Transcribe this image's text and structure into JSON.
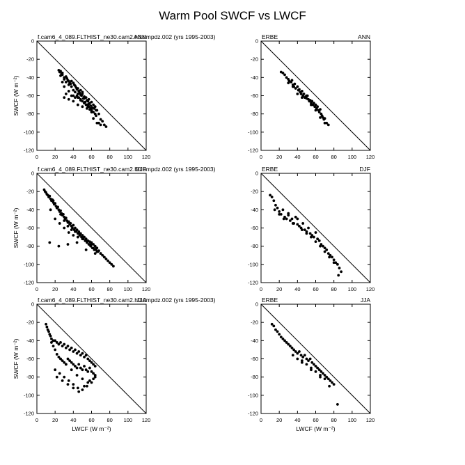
{
  "title": "Warm Pool SWCF vs LWCF",
  "chart_data": [
    {
      "id": "p1",
      "type": "scatter",
      "left_label": "f.cam6_4_089.FLTHIST_ne30.cam2.h0.dmpdz.002 (yrs 1995-2003)",
      "right_label": "ANN",
      "xlabel": "",
      "ylabel": "SWCF (W m⁻²)",
      "xlim": [
        0,
        120
      ],
      "ylim": [
        -120,
        0
      ],
      "xticks": [
        "0",
        "20",
        "40",
        "60",
        "80",
        "100",
        "120"
      ],
      "yticks": [
        "0",
        "-20",
        "-40",
        "-60",
        "-80",
        "-100",
        "-120"
      ],
      "reference_line": "y = -x",
      "x": [
        24,
        25,
        26,
        27,
        28,
        26,
        28,
        30,
        32,
        30,
        33,
        35,
        32,
        34,
        36,
        38,
        35,
        37,
        40,
        42,
        38,
        41,
        43,
        45,
        40,
        44,
        46,
        48,
        42,
        45,
        47,
        50,
        44,
        48,
        50,
        52,
        46,
        49,
        51,
        54,
        48,
        52,
        55,
        57,
        50,
        53,
        56,
        58,
        52,
        55,
        57,
        60,
        54,
        57,
        59,
        62,
        56,
        59,
        61,
        64,
        58,
        60,
        63,
        66,
        60,
        62,
        65,
        68,
        45,
        50,
        55,
        60,
        65,
        70,
        68,
        72,
        74,
        76,
        28,
        30,
        35,
        40,
        45,
        30,
        35,
        40,
        32,
        38,
        42,
        48,
        52,
        56,
        60,
        64,
        62,
        66,
        70
      ],
      "y": [
        -32,
        -34,
        -33,
        -36,
        -35,
        -38,
        -37,
        -40,
        -39,
        -42,
        -41,
        -44,
        -45,
        -43,
        -46,
        -44,
        -48,
        -47,
        -46,
        -49,
        -50,
        -48,
        -51,
        -52,
        -54,
        -53,
        -55,
        -54,
        -56,
        -58,
        -57,
        -56,
        -60,
        -59,
        -58,
        -61,
        -62,
        -60,
        -63,
        -62,
        -64,
        -63,
        -65,
        -64,
        -66,
        -67,
        -66,
        -68,
        -68,
        -70,
        -69,
        -67,
        -70,
        -72,
        -71,
        -70,
        -72,
        -74,
        -73,
        -72,
        -75,
        -76,
        -74,
        -76,
        -77,
        -78,
        -76,
        -80,
        -70,
        -72,
        -74,
        -78,
        -82,
        -86,
        -90,
        -88,
        -92,
        -94,
        -45,
        -50,
        -55,
        -60,
        -62,
        -62,
        -64,
        -66,
        -58,
        -60,
        -62,
        -65,
        -68,
        -70,
        -75,
        -80,
        -85,
        -90,
        -92
      ]
    },
    {
      "id": "p2",
      "type": "scatter",
      "left_label": "ERBE",
      "right_label": "ANN",
      "xlabel": "",
      "ylabel": "",
      "xlim": [
        0,
        120
      ],
      "ylim": [
        -120,
        0
      ],
      "xticks": [
        "0",
        "20",
        "40",
        "60",
        "80",
        "100",
        "120"
      ],
      "yticks": [
        "0",
        "-20",
        "-40",
        "-60",
        "-80",
        "-100",
        "-120"
      ],
      "reference_line": "y = -x",
      "x": [
        22,
        24,
        26,
        28,
        30,
        31,
        33,
        34,
        35,
        36,
        37,
        38,
        40,
        41,
        42,
        43,
        44,
        45,
        46,
        47,
        48,
        49,
        50,
        51,
        52,
        53,
        54,
        55,
        56,
        57,
        58,
        59,
        60,
        61,
        62,
        63,
        64,
        65,
        66,
        67,
        68,
        69,
        70,
        72,
        74,
        30,
        35,
        40,
        45,
        50,
        55,
        60,
        65,
        70
      ],
      "y": [
        -34,
        -35,
        -37,
        -40,
        -42,
        -44,
        -45,
        -43,
        -48,
        -50,
        -47,
        -52,
        -50,
        -54,
        -53,
        -56,
        -58,
        -55,
        -60,
        -58,
        -62,
        -61,
        -63,
        -60,
        -64,
        -66,
        -65,
        -68,
        -66,
        -70,
        -68,
        -72,
        -70,
        -74,
        -72,
        -76,
        -78,
        -75,
        -80,
        -82,
        -84,
        -86,
        -85,
        -90,
        -92,
        -46,
        -50,
        -58,
        -62,
        -60,
        -70,
        -76,
        -84,
        -90
      ]
    },
    {
      "id": "p3",
      "type": "scatter",
      "left_label": "f.cam6_4_089.FLTHIST_ne30.cam2.h0.dmpdz.002 (yrs 1995-2003)",
      "right_label": "DJF",
      "xlabel": "",
      "ylabel": "SWCF (W m⁻²)",
      "xlim": [
        0,
        120
      ],
      "ylim": [
        -120,
        0
      ],
      "xticks": [
        "0",
        "20",
        "40",
        "60",
        "80",
        "100",
        "120"
      ],
      "yticks": [
        "0",
        "-20",
        "-40",
        "-60",
        "-80",
        "-100",
        "-120"
      ],
      "reference_line": "y = -x",
      "x": [
        8,
        9,
        10,
        11,
        12,
        13,
        14,
        15,
        16,
        17,
        18,
        19,
        20,
        21,
        22,
        23,
        24,
        25,
        26,
        27,
        28,
        29,
        30,
        31,
        32,
        33,
        34,
        35,
        36,
        37,
        38,
        39,
        40,
        41,
        42,
        43,
        44,
        45,
        46,
        47,
        48,
        49,
        50,
        51,
        52,
        53,
        54,
        55,
        56,
        57,
        58,
        59,
        60,
        61,
        62,
        63,
        64,
        65,
        66,
        67,
        68,
        70,
        72,
        74,
        76,
        78,
        80,
        82,
        84,
        15,
        20,
        25,
        30,
        35,
        40,
        45,
        50,
        55,
        60,
        65,
        70,
        18,
        22,
        26,
        30,
        34,
        38,
        42,
        46,
        50,
        54,
        58,
        62,
        66,
        14,
        24,
        34,
        44,
        54,
        64,
        74
      ],
      "y": [
        -18,
        -20,
        -21,
        -23,
        -24,
        -26,
        -25,
        -28,
        -30,
        -29,
        -32,
        -34,
        -33,
        -36,
        -38,
        -37,
        -40,
        -42,
        -41,
        -44,
        -46,
        -45,
        -48,
        -50,
        -49,
        -52,
        -54,
        -53,
        -56,
        -55,
        -58,
        -60,
        -57,
        -62,
        -60,
        -64,
        -62,
        -66,
        -64,
        -68,
        -66,
        -70,
        -68,
        -72,
        -70,
        -74,
        -72,
        -76,
        -74,
        -78,
        -75,
        -80,
        -76,
        -82,
        -78,
        -84,
        -80,
        -84,
        -82,
        -86,
        -85,
        -88,
        -90,
        -92,
        -94,
        -96,
        -98,
        -100,
        -102,
        -40,
        -50,
        -55,
        -60,
        -65,
        -68,
        -70,
        -72,
        -75,
        -78,
        -82,
        -88,
        -30,
        -38,
        -45,
        -52,
        -58,
        -62,
        -64,
        -66,
        -70,
        -74,
        -78,
        -82,
        -86,
        -76,
        -80,
        -78,
        -76,
        -84,
        -88,
        -92
      ]
    },
    {
      "id": "p4",
      "type": "scatter",
      "left_label": "ERBE",
      "right_label": "DJF",
      "xlabel": "",
      "ylabel": "",
      "xlim": [
        0,
        120
      ],
      "ylim": [
        -120,
        0
      ],
      "xticks": [
        "0",
        "20",
        "40",
        "60",
        "80",
        "100",
        "120"
      ],
      "yticks": [
        "0",
        "-20",
        "-40",
        "-60",
        "-80",
        "-100",
        "-120"
      ],
      "reference_line": "y = -x",
      "x": [
        10,
        12,
        14,
        16,
        18,
        20,
        22,
        24,
        26,
        28,
        30,
        32,
        34,
        36,
        38,
        40,
        42,
        44,
        46,
        48,
        50,
        52,
        54,
        56,
        58,
        60,
        62,
        64,
        66,
        68,
        70,
        72,
        74,
        76,
        78,
        80,
        82,
        84,
        86,
        88,
        15,
        20,
        25,
        30,
        35,
        40,
        45,
        50,
        55,
        60,
        65,
        70,
        75,
        80,
        85
      ],
      "y": [
        -24,
        -26,
        -30,
        -35,
        -38,
        -42,
        -45,
        -40,
        -48,
        -50,
        -46,
        -52,
        -50,
        -55,
        -48,
        -56,
        -58,
        -60,
        -55,
        -62,
        -64,
        -60,
        -66,
        -68,
        -70,
        -65,
        -72,
        -74,
        -78,
        -80,
        -82,
        -84,
        -88,
        -90,
        -92,
        -95,
        -98,
        -100,
        -104,
        -108,
        -40,
        -45,
        -50,
        -44,
        -55,
        -50,
        -62,
        -66,
        -70,
        -75,
        -80,
        -86,
        -92,
        -98,
        -112
      ]
    },
    {
      "id": "p5",
      "type": "scatter",
      "left_label": "f.cam6_4_089.FLTHIST_ne30.cam2.h0.dmpdz.002 (yrs 1995-2003)",
      "right_label": "JJA",
      "xlabel": "LWCF (W m⁻²)",
      "ylabel": "SWCF (W m⁻²)",
      "xlim": [
        0,
        120
      ],
      "ylim": [
        -120,
        0
      ],
      "xticks": [
        "0",
        "20",
        "40",
        "60",
        "80",
        "100",
        "120"
      ],
      "yticks": [
        "0",
        "-20",
        "-40",
        "-60",
        "-80",
        "-100",
        "-120"
      ],
      "reference_line": "y = -x",
      "x": [
        10,
        11,
        12,
        13,
        14,
        15,
        16,
        18,
        20,
        22,
        24,
        26,
        28,
        30,
        32,
        34,
        36,
        38,
        40,
        42,
        44,
        46,
        48,
        50,
        52,
        54,
        56,
        58,
        60,
        62,
        64,
        16,
        18,
        20,
        22,
        24,
        26,
        28,
        30,
        32,
        34,
        36,
        38,
        40,
        42,
        44,
        46,
        48,
        50,
        52,
        54,
        56,
        58,
        60,
        62,
        64,
        20,
        25,
        30,
        35,
        40,
        45,
        50,
        55,
        60,
        22,
        28,
        34,
        40,
        46,
        52,
        58,
        64,
        26,
        32,
        38,
        44,
        50,
        56,
        62
      ],
      "y": [
        -22,
        -25,
        -28,
        -30,
        -33,
        -35,
        -38,
        -40,
        -40,
        -42,
        -44,
        -42,
        -46,
        -44,
        -48,
        -46,
        -50,
        -48,
        -52,
        -50,
        -54,
        -52,
        -56,
        -54,
        -58,
        -56,
        -60,
        -62,
        -64,
        -66,
        -68,
        -42,
        -46,
        -50,
        -55,
        -58,
        -60,
        -62,
        -64,
        -66,
        -60,
        -62,
        -64,
        -66,
        -68,
        -70,
        -66,
        -70,
        -72,
        -68,
        -72,
        -74,
        -70,
        -74,
        -76,
        -78,
        -72,
        -76,
        -80,
        -84,
        -88,
        -92,
        -94,
        -90,
        -86,
        -80,
        -84,
        -88,
        -92,
        -96,
        -90,
        -84,
        -80,
        -60,
        -66,
        -72,
        -78,
        -82,
        -86,
        -82
      ]
    },
    {
      "id": "p6",
      "type": "scatter",
      "left_label": "ERBE",
      "right_label": "JJA",
      "xlabel": "LWCF (W m⁻²)",
      "ylabel": "",
      "xlim": [
        0,
        120
      ],
      "ylim": [
        -120,
        0
      ],
      "xticks": [
        "0",
        "20",
        "40",
        "60",
        "80",
        "100",
        "120"
      ],
      "yticks": [
        "0",
        "-20",
        "-40",
        "-60",
        "-80",
        "-100",
        "-120"
      ],
      "reference_line": "y = -x",
      "x": [
        12,
        14,
        16,
        18,
        20,
        22,
        24,
        26,
        28,
        30,
        32,
        34,
        36,
        38,
        40,
        42,
        44,
        46,
        48,
        50,
        52,
        54,
        56,
        58,
        60,
        62,
        64,
        66,
        68,
        70,
        72,
        74,
        76,
        78,
        80,
        84,
        40,
        45,
        50,
        55,
        60,
        65,
        70,
        35,
        45,
        55,
        65,
        75
      ],
      "y": [
        -22,
        -24,
        -28,
        -30,
        -33,
        -36,
        -38,
        -40,
        -42,
        -44,
        -46,
        -48,
        -50,
        -52,
        -54,
        -52,
        -56,
        -58,
        -56,
        -60,
        -62,
        -60,
        -64,
        -66,
        -68,
        -70,
        -72,
        -74,
        -76,
        -78,
        -80,
        -82,
        -84,
        -86,
        -88,
        -110,
        -60,
        -62,
        -66,
        -70,
        -74,
        -78,
        -82,
        -56,
        -64,
        -72,
        -80,
        -90
      ]
    }
  ]
}
